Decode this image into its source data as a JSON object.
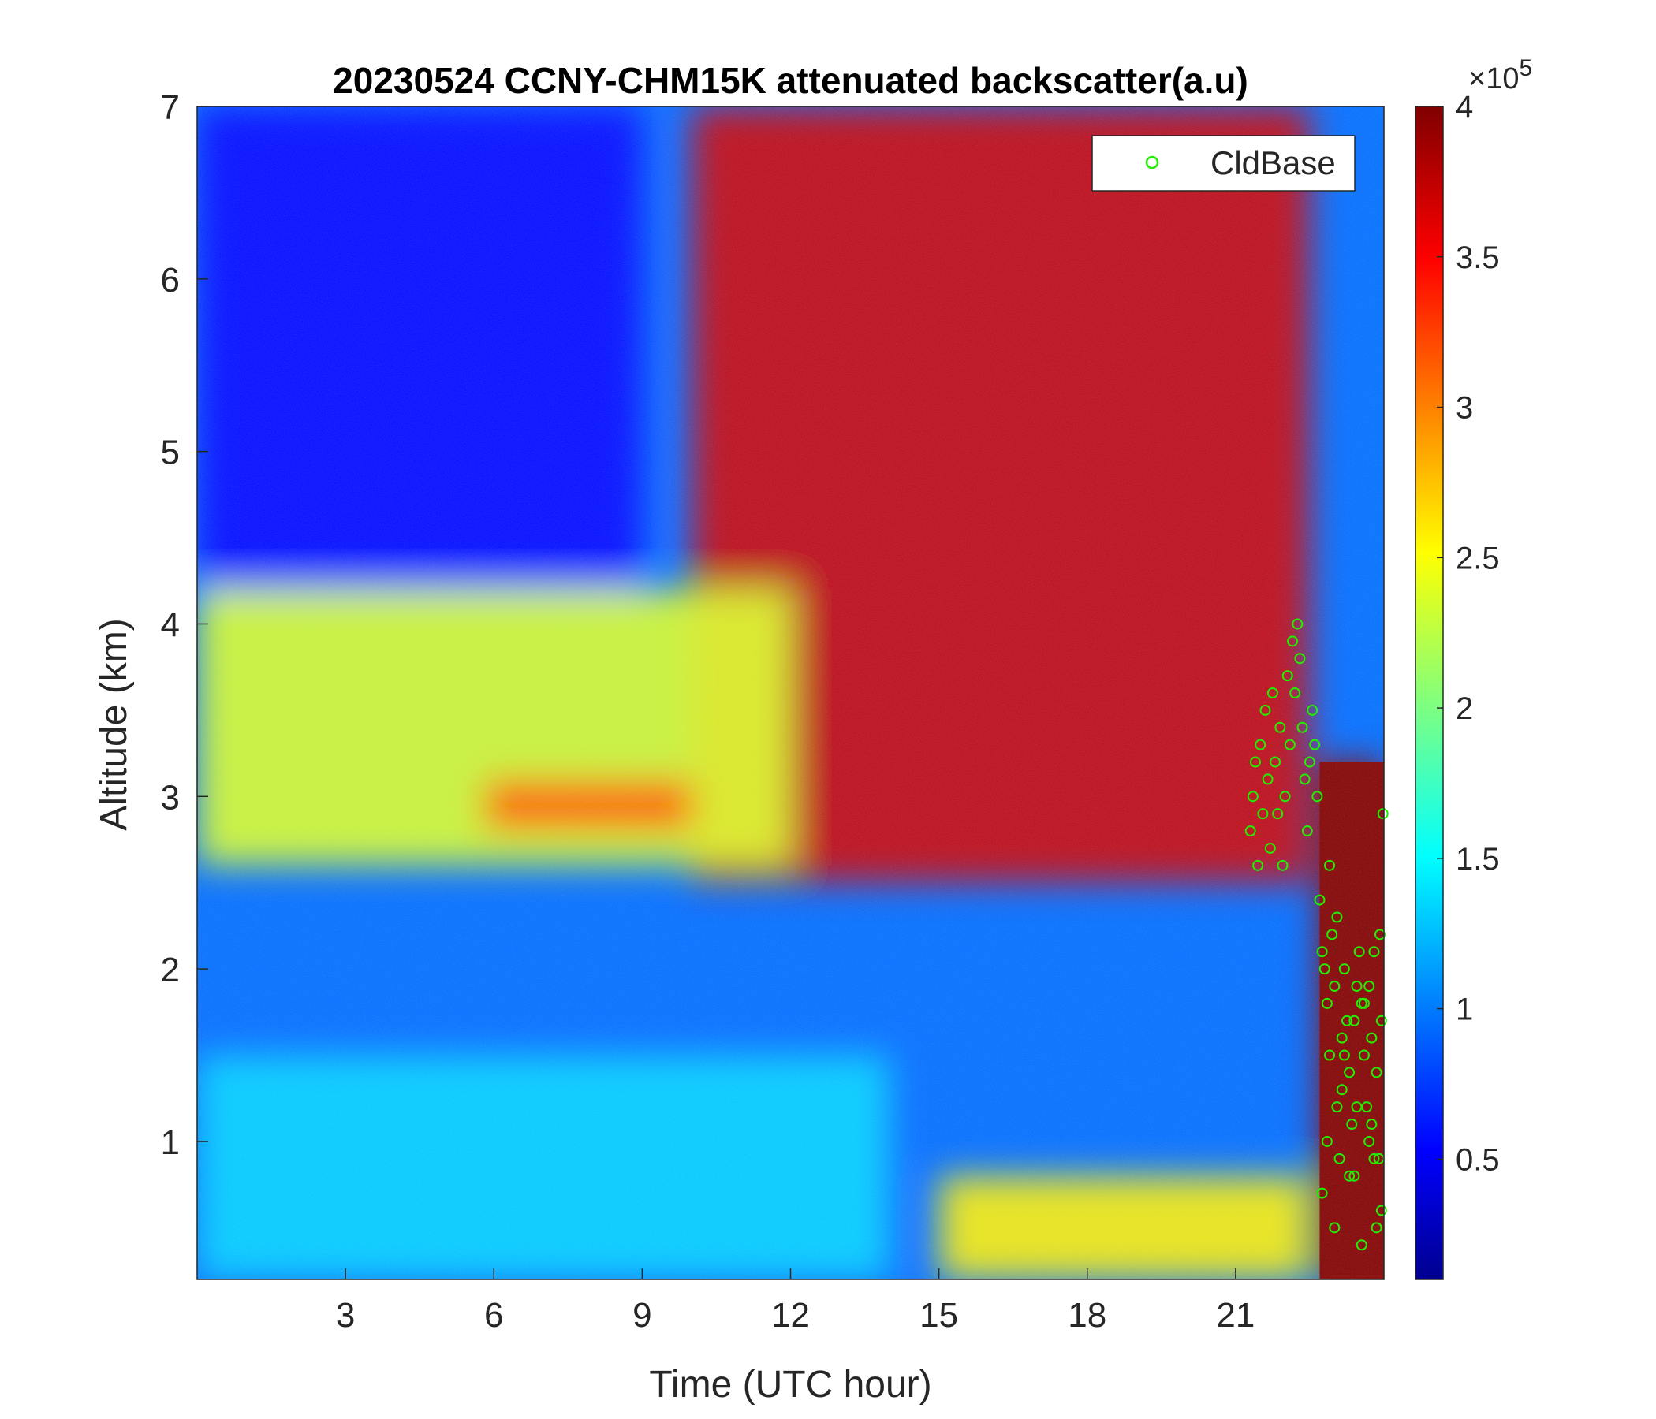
{
  "chart_data": {
    "type": "heatmap",
    "title": "20230524 CCNY-CHM15K attenuated backscatter(a.u)",
    "xlabel": "Time (UTC hour)",
    "ylabel": "Altitude (km)",
    "xlim": [
      0,
      24
    ],
    "ylim": [
      0.2,
      7
    ],
    "x_ticks": [
      3,
      6,
      9,
      12,
      15,
      18,
      21
    ],
    "y_ticks": [
      1,
      2,
      3,
      4,
      5,
      6,
      7
    ],
    "colorbar": {
      "range": [
        0.1,
        4
      ],
      "ticks": [
        0.5,
        1,
        1.5,
        2,
        2.5,
        3,
        3.5,
        4
      ],
      "exponent_label": "×10",
      "exponent_power": "5",
      "colormap": "jet"
    },
    "legend": {
      "entries": [
        "CldBase"
      ],
      "placement": "top-right",
      "marker_color": "#22ee00"
    },
    "background_regions": [
      {
        "name": "upper-atmosphere-left",
        "x_range": [
          0,
          9
        ],
        "y_range": [
          4.2,
          7
        ],
        "value": 0.6
      },
      {
        "name": "upper-atmosphere-right",
        "x_range": [
          10,
          22.5
        ],
        "y_range": [
          2.5,
          7
        ],
        "value": 3.7
      },
      {
        "name": "residual-layer",
        "x_range": [
          0,
          12
        ],
        "y_range": [
          2.6,
          4.2
        ],
        "value": 2.4
      },
      {
        "name": "aerosol-layer-peak",
        "x_range": [
          5.8,
          10
        ],
        "y_range": [
          2.8,
          3.1
        ],
        "value": 3.2
      },
      {
        "name": "boundary-layer",
        "x_range": [
          0,
          14
        ],
        "y_range": [
          0.2,
          1.5
        ],
        "value": 1.4
      },
      {
        "name": "surface-layer-afternoon",
        "x_range": [
          15,
          22.5
        ],
        "y_range": [
          0.2,
          0.8
        ],
        "value": 2.6
      },
      {
        "name": "rain-cloud",
        "x_range": [
          22.7,
          24
        ],
        "y_range": [
          0.2,
          3.2
        ],
        "value": 4
      }
    ],
    "series": [
      {
        "name": "CldBase",
        "points": [
          [
            21.3,
            2.8
          ],
          [
            21.35,
            3.0
          ],
          [
            21.4,
            3.2
          ],
          [
            21.45,
            2.6
          ],
          [
            21.5,
            3.3
          ],
          [
            21.55,
            2.9
          ],
          [
            21.6,
            3.5
          ],
          [
            21.65,
            3.1
          ],
          [
            21.7,
            2.7
          ],
          [
            21.75,
            3.6
          ],
          [
            21.8,
            3.2
          ],
          [
            21.85,
            2.9
          ],
          [
            21.9,
            3.4
          ],
          [
            21.95,
            2.6
          ],
          [
            22.0,
            3.0
          ],
          [
            22.05,
            3.7
          ],
          [
            22.1,
            3.3
          ],
          [
            22.15,
            3.9
          ],
          [
            22.2,
            3.6
          ],
          [
            22.25,
            4.0
          ],
          [
            22.3,
            3.8
          ],
          [
            22.35,
            3.4
          ],
          [
            22.4,
            3.1
          ],
          [
            22.45,
            2.8
          ],
          [
            22.5,
            3.2
          ],
          [
            22.55,
            3.5
          ],
          [
            22.6,
            3.3
          ],
          [
            22.65,
            3.0
          ],
          [
            22.7,
            2.4
          ],
          [
            22.75,
            2.1
          ],
          [
            22.8,
            2.0
          ],
          [
            22.85,
            1.8
          ],
          [
            22.9,
            1.5
          ],
          [
            22.95,
            2.2
          ],
          [
            23.0,
            1.9
          ],
          [
            23.05,
            1.2
          ],
          [
            23.1,
            0.9
          ],
          [
            23.15,
            1.6
          ],
          [
            23.2,
            2.0
          ],
          [
            23.25,
            1.7
          ],
          [
            23.3,
            1.4
          ],
          [
            23.35,
            1.1
          ],
          [
            23.4,
            0.8
          ],
          [
            23.45,
            1.9
          ],
          [
            23.5,
            2.1
          ],
          [
            23.55,
            1.8
          ],
          [
            23.6,
            1.5
          ],
          [
            23.65,
            1.2
          ],
          [
            23.7,
            1.0
          ],
          [
            23.75,
            1.6
          ],
          [
            23.8,
            2.1
          ],
          [
            23.85,
            1.4
          ],
          [
            23.9,
            0.9
          ],
          [
            23.95,
            0.6
          ],
          [
            23.98,
            2.9
          ],
          [
            22.75,
            0.7
          ],
          [
            22.85,
            1.0
          ],
          [
            23.0,
            0.5
          ],
          [
            23.15,
            1.3
          ],
          [
            23.3,
            0.8
          ],
          [
            23.45,
            1.2
          ],
          [
            23.6,
            1.8
          ],
          [
            23.75,
            1.1
          ],
          [
            23.85,
            0.5
          ],
          [
            23.92,
            2.2
          ],
          [
            23.95,
            1.7
          ],
          [
            22.9,
            2.6
          ],
          [
            23.05,
            2.3
          ],
          [
            23.2,
            1.5
          ],
          [
            23.4,
            1.7
          ],
          [
            23.55,
            0.4
          ],
          [
            23.7,
            1.9
          ],
          [
            23.8,
            0.9
          ]
        ]
      }
    ]
  }
}
